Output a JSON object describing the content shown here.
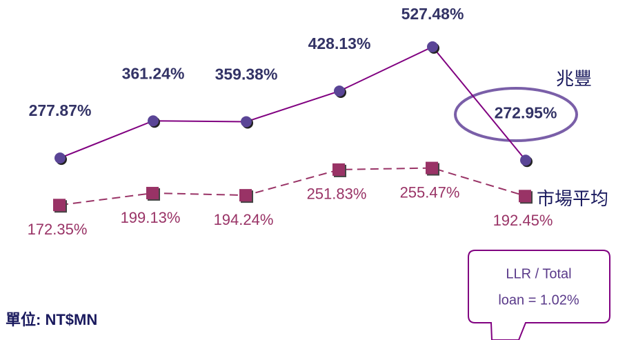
{
  "chart_data": {
    "type": "line",
    "categories": [
      null,
      null,
      null,
      null,
      null,
      null
    ],
    "series": [
      {
        "name": "兆豐",
        "color": "#800080",
        "marker_color": "#5a4596",
        "style": "solid",
        "marker": "circle",
        "values": [
          277.87,
          361.24,
          359.38,
          428.13,
          527.48,
          272.95
        ],
        "value_labels": [
          "277.87%",
          "361.24%",
          "359.38%",
          "428.13%",
          "527.48%",
          "272.95%"
        ]
      },
      {
        "name": "市場平均",
        "color": "#993366",
        "marker_color": "#993366",
        "style": "dashed",
        "marker": "square",
        "values": [
          172.35,
          199.13,
          194.24,
          251.83,
          255.47,
          192.45
        ],
        "value_labels": [
          "172.35%",
          "199.13%",
          "194.24%",
          "251.83%",
          "255.47%",
          "192.45%"
        ]
      }
    ],
    "ylim": [
      100,
      600
    ],
    "annotations": [
      "單位: NT$MN"
    ],
    "callout": [
      "LLR / Total",
      "loan = 1.02%"
    ]
  }
}
